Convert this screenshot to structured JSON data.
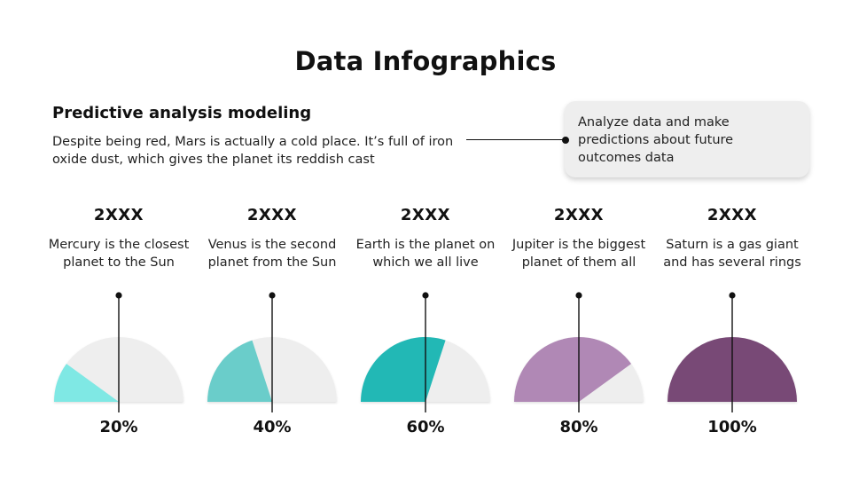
{
  "header": {
    "title": "Data Infographics"
  },
  "intro": {
    "subtitle": "Predictive analysis modeling",
    "description": "Despite being red, Mars is actually a cold place. It’s full of iron oxide dust, which gives the planet its reddish cast"
  },
  "callout": {
    "text": "Analyze data and make predictions about future outcomes data"
  },
  "colors": {
    "track": "#eeeeee",
    "mercury": "#7fe8e4",
    "venus": "#6acdca",
    "earth": "#24b8b5",
    "jupiter": "#b088b5",
    "saturn": "#784976",
    "line": "#111111"
  },
  "items": [
    {
      "year": "2XXX",
      "text": "Mercury is the closest planet to the Sun",
      "percent_label": "20%",
      "value": 20,
      "color": "#7fe8e4"
    },
    {
      "year": "2XXX",
      "text": "Venus is the second planet from the Sun",
      "percent_label": "40%",
      "value": 40,
      "color": "#6acdca"
    },
    {
      "year": "2XXX",
      "text": "Earth is the planet on which we all live",
      "percent_label": "60%",
      "value": 60,
      "color": "#24b8b5"
    },
    {
      "year": "2XXX",
      "text": "Jupiter is the biggest planet of them all",
      "percent_label": "80%",
      "value": 80,
      "color": "#b088b5"
    },
    {
      "year": "2XXX",
      "text": "Saturn is a gas giant and has several rings",
      "percent_label": "100%",
      "value": 100,
      "color": "#784976"
    }
  ],
  "chart_data": {
    "type": "pie",
    "subtype": "semicircle-gauges",
    "title": "Data Infographics",
    "categories": [
      "Mercury",
      "Venus",
      "Earth",
      "Jupiter",
      "Saturn"
    ],
    "values": [
      20,
      40,
      60,
      80,
      100
    ],
    "labels": [
      "20%",
      "40%",
      "60%",
      "80%",
      "100%"
    ],
    "max": 100
  }
}
